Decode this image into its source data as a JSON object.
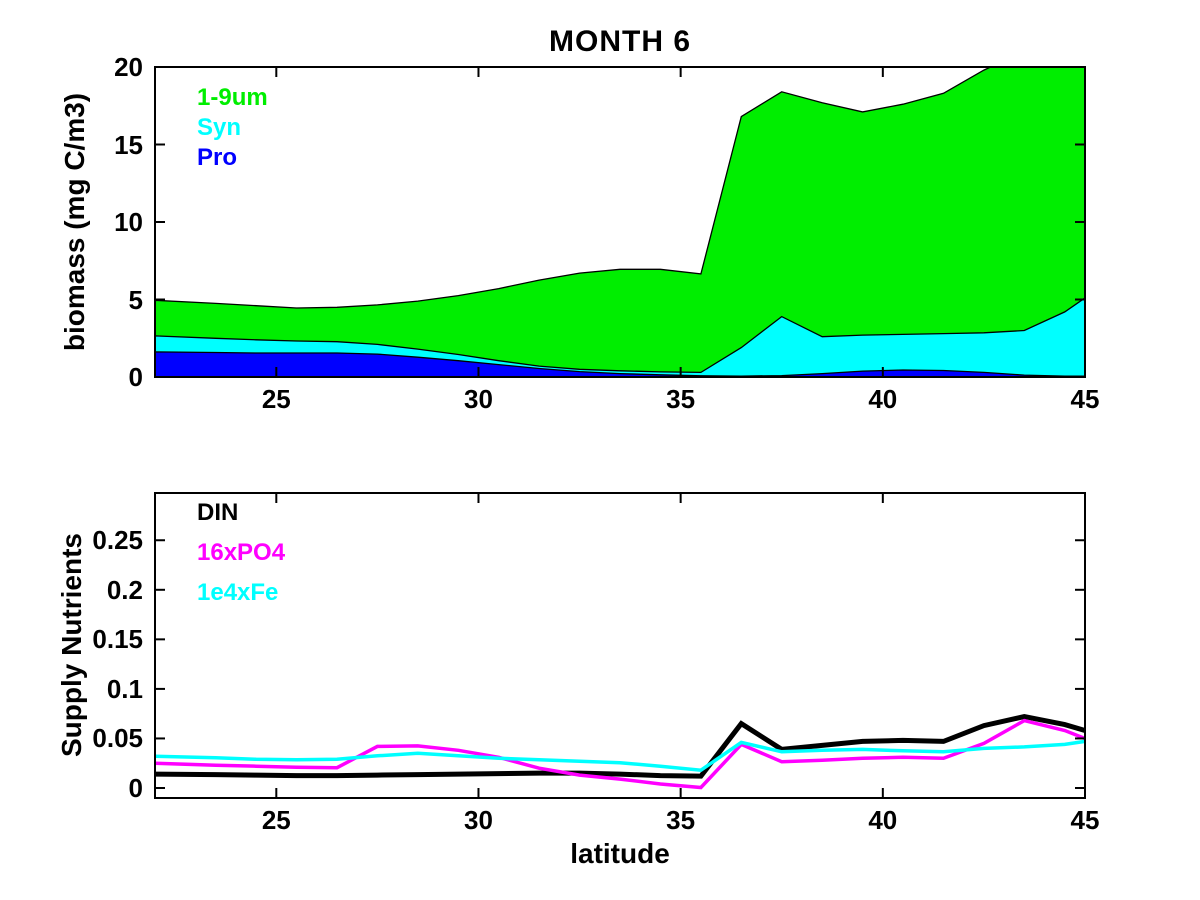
{
  "figure": {
    "background": "#ffffff",
    "frame_color": "#000000"
  },
  "chart_data": [
    {
      "type": "area",
      "stacked": true,
      "title": "MONTH 6",
      "xlabel": "",
      "ylabel": "biomass (mg C/m3)",
      "xlim": [
        22,
        45
      ],
      "ylim": [
        0,
        20
      ],
      "xticks": [
        25,
        30,
        35,
        40,
        45
      ],
      "xtick_labels": [
        "25",
        "30",
        "35",
        "40",
        "45"
      ],
      "yticks": [
        0,
        5,
        10,
        15,
        20
      ],
      "ytick_labels": [
        "0",
        "5",
        "10",
        "15",
        "20"
      ],
      "grid": false,
      "legend_position": "top-left-inside",
      "x": [
        22,
        23.5,
        24.5,
        25.5,
        26.5,
        27.5,
        28.5,
        29.5,
        30.5,
        31.5,
        32.5,
        33.5,
        34.5,
        35.5,
        36.5,
        37.5,
        38.5,
        39.5,
        40.5,
        41.5,
        42.5,
        43.5,
        44.5,
        45
      ],
      "series": [
        {
          "name": "Pro",
          "color": "#0000ff",
          "values": [
            1.62,
            1.58,
            1.55,
            1.55,
            1.55,
            1.48,
            1.28,
            1.05,
            0.8,
            0.55,
            0.35,
            0.22,
            0.14,
            0.08,
            0.06,
            0.09,
            0.22,
            0.38,
            0.45,
            0.42,
            0.3,
            0.12,
            0.06,
            0.06
          ]
        },
        {
          "name": "Syn",
          "color": "#00ffff",
          "values": [
            1.03,
            0.92,
            0.85,
            0.77,
            0.73,
            0.62,
            0.52,
            0.4,
            0.25,
            0.15,
            0.15,
            0.18,
            0.19,
            0.22,
            1.84,
            3.81,
            2.38,
            2.32,
            2.3,
            2.38,
            2.55,
            2.88,
            4.14,
            5.04
          ]
        },
        {
          "name": "1-9um",
          "color": "#00ee00",
          "values": [
            2.3,
            2.25,
            2.2,
            2.13,
            2.22,
            2.55,
            3.1,
            3.8,
            4.65,
            5.55,
            6.2,
            6.55,
            6.62,
            6.35,
            14.9,
            14.5,
            15.1,
            14.4,
            14.85,
            15.5,
            16.95,
            18.0,
            17.1,
            16.3
          ]
        }
      ],
      "legend": [
        {
          "label": "1-9um",
          "color": "#00ee00"
        },
        {
          "label": "Syn",
          "color": "#00ffff"
        },
        {
          "label": "Pro",
          "color": "#0000ff"
        }
      ],
      "edge_color": "#000000",
      "edge_width": 1.3
    },
    {
      "type": "line",
      "title": "",
      "xlabel": "latitude",
      "ylabel": "Supply Nutrients",
      "xlim": [
        22,
        45
      ],
      "ylim": [
        0,
        0.3
      ],
      "xticks": [
        25,
        30,
        35,
        40,
        45
      ],
      "xtick_labels": [
        "25",
        "30",
        "35",
        "40",
        "45"
      ],
      "yticks": [
        0,
        0.05,
        0.1,
        0.15,
        0.2,
        0.25
      ],
      "ytick_labels": [
        "0",
        "0.05",
        "0.1",
        "0.15",
        "0.2",
        "0.25"
      ],
      "grid": false,
      "legend_position": "top-left-inside",
      "x": [
        22,
        23.5,
        24.5,
        25.5,
        26.5,
        27.5,
        28.5,
        29.5,
        30.5,
        31.5,
        32.5,
        33.5,
        34.5,
        35.5,
        36.5,
        37.5,
        38.5,
        39.5,
        40.5,
        41.5,
        42.5,
        43.5,
        44.5,
        45
      ],
      "series": [
        {
          "name": "DIN",
          "color": "#000000",
          "width": 5,
          "values": [
            0.014,
            0.0135,
            0.013,
            0.0125,
            0.0125,
            0.013,
            0.0135,
            0.014,
            0.0145,
            0.015,
            0.015,
            0.014,
            0.0125,
            0.012,
            0.065,
            0.039,
            0.043,
            0.047,
            0.048,
            0.047,
            0.063,
            0.072,
            0.064,
            0.058
          ]
        },
        {
          "name": "16xPO4",
          "color": "#ff00ff",
          "width": 3.5,
          "values": [
            0.025,
            0.023,
            0.022,
            0.021,
            0.0205,
            0.042,
            0.0425,
            0.038,
            0.031,
            0.02,
            0.013,
            0.009,
            0.004,
            0.0005,
            0.044,
            0.0265,
            0.028,
            0.03,
            0.031,
            0.03,
            0.045,
            0.068,
            0.058,
            0.05
          ]
        },
        {
          "name": "1e4xFe",
          "color": "#00ffff",
          "width": 3.5,
          "values": [
            0.032,
            0.0305,
            0.029,
            0.0285,
            0.029,
            0.0325,
            0.035,
            0.0325,
            0.03,
            0.0285,
            0.027,
            0.0255,
            0.022,
            0.018,
            0.046,
            0.0365,
            0.038,
            0.039,
            0.0375,
            0.0365,
            0.04,
            0.0415,
            0.044,
            0.047
          ]
        }
      ],
      "legend": [
        {
          "label": "DIN",
          "color": "#000000"
        },
        {
          "label": "16xPO4",
          "color": "#ff00ff"
        },
        {
          "label": "1e4xFe",
          "color": "#00ffff"
        }
      ]
    }
  ]
}
